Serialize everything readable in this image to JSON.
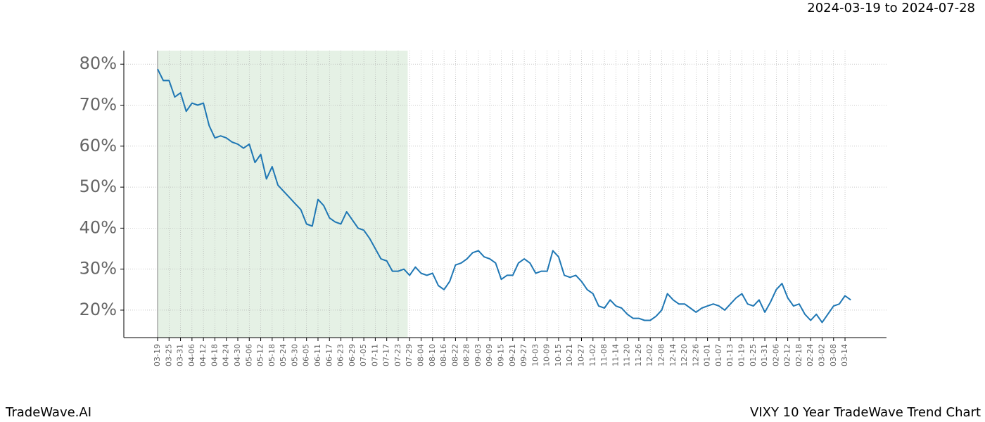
{
  "chart_data": {
    "type": "line",
    "subtitle": "2024-03-19 to 2024-07-28",
    "brand": "TradeWave.AI",
    "title": "VIXY 10 Year TradeWave Trend Chart",
    "highlight": {
      "start": "03-19",
      "end": "07-28",
      "color": "#e5f1e5"
    },
    "grid": true,
    "ylim": [
      13.3,
      83.3
    ],
    "yticks": [
      {
        "value": 20,
        "label": "20%"
      },
      {
        "value": 30,
        "label": "30%"
      },
      {
        "value": 40,
        "label": "40%"
      },
      {
        "value": 50,
        "label": "50%"
      },
      {
        "value": 60,
        "label": "60%"
      },
      {
        "value": 70,
        "label": "70%"
      },
      {
        "value": 80,
        "label": "80%"
      }
    ],
    "xticks": [
      "03-19",
      "03-25",
      "03-31",
      "04-06",
      "04-12",
      "04-18",
      "04-24",
      "04-30",
      "05-06",
      "05-12",
      "05-18",
      "05-24",
      "05-30",
      "06-05",
      "06-11",
      "06-17",
      "06-23",
      "06-29",
      "07-05",
      "07-11",
      "07-17",
      "07-23",
      "07-29",
      "08-04",
      "08-10",
      "08-16",
      "08-22",
      "08-28",
      "09-03",
      "09-09",
      "09-15",
      "09-21",
      "09-27",
      "10-03",
      "10-09",
      "10-15",
      "10-21",
      "10-27",
      "11-02",
      "11-08",
      "11-14",
      "11-20",
      "11-26",
      "12-02",
      "12-08",
      "12-14",
      "12-20",
      "12-26",
      "01-01",
      "01-07",
      "01-13",
      "01-19",
      "01-25",
      "01-31",
      "02-06",
      "02-12",
      "02-18",
      "02-24",
      "03-02",
      "03-08",
      "03-14"
    ],
    "x": [
      "03-19",
      "03-22",
      "03-25",
      "03-28",
      "03-31",
      "04-03",
      "04-06",
      "04-09",
      "04-12",
      "04-15",
      "04-18",
      "04-21",
      "04-24",
      "04-27",
      "04-30",
      "05-03",
      "05-06",
      "05-09",
      "05-12",
      "05-15",
      "05-18",
      "05-21",
      "05-24",
      "05-27",
      "05-30",
      "06-02",
      "06-05",
      "06-08",
      "06-11",
      "06-14",
      "06-17",
      "06-20",
      "06-23",
      "06-26",
      "06-29",
      "07-02",
      "07-05",
      "07-08",
      "07-11",
      "07-14",
      "07-17",
      "07-20",
      "07-23",
      "07-26",
      "07-29",
      "08-01",
      "08-04",
      "08-07",
      "08-10",
      "08-13",
      "08-16",
      "08-19",
      "08-22",
      "08-25",
      "08-28",
      "08-31",
      "09-03",
      "09-06",
      "09-09",
      "09-12",
      "09-15",
      "09-18",
      "09-21",
      "09-24",
      "09-27",
      "09-30",
      "10-03",
      "10-06",
      "10-09",
      "10-12",
      "10-15",
      "10-18",
      "10-21",
      "10-24",
      "10-27",
      "10-30",
      "11-02",
      "11-05",
      "11-08",
      "11-11",
      "11-14",
      "11-17",
      "11-20",
      "11-23",
      "11-26",
      "11-29",
      "12-02",
      "12-05",
      "12-08",
      "12-11",
      "12-14",
      "12-17",
      "12-20",
      "12-23",
      "12-26",
      "12-29",
      "01-01",
      "01-04",
      "01-07",
      "01-10",
      "01-13",
      "01-16",
      "01-19",
      "01-22",
      "01-25",
      "01-28",
      "01-31",
      "02-03",
      "02-06",
      "02-09",
      "02-12",
      "02-15",
      "02-18",
      "02-21",
      "02-24",
      "02-27",
      "03-02",
      "03-05",
      "03-08",
      "03-11",
      "03-14",
      "03-17"
    ],
    "series": [
      {
        "color": "#1f77b4",
        "values": [
          78.8,
          76,
          76,
          72,
          73,
          68.5,
          70.5,
          70,
          70.5,
          65,
          62,
          62.5,
          62,
          61,
          60.5,
          59.5,
          60.5,
          56,
          58,
          52,
          55,
          50.5,
          49,
          47.5,
          46,
          44.5,
          41,
          40.5,
          47,
          45.5,
          42.5,
          41.5,
          41,
          44,
          42,
          40,
          39.5,
          37.5,
          35,
          32.5,
          32,
          29.5,
          29.5,
          30,
          28.5,
          30.5,
          29,
          28.5,
          29,
          26,
          25,
          27,
          31,
          31.5,
          32.5,
          34,
          34.5,
          33,
          32.5,
          31.5,
          27.5,
          28.5,
          28.5,
          31.5,
          32.5,
          31.5,
          29,
          29.5,
          29.5,
          34.5,
          33,
          28.5,
          28,
          28.5,
          27,
          25,
          24,
          21,
          20.5,
          22.5,
          21,
          20.5,
          19,
          18,
          18,
          17.5,
          17.5,
          18.5,
          20,
          24,
          22.5,
          21.5,
          21.5,
          20.5,
          19.5,
          20.5,
          21,
          21.5,
          21,
          20,
          21.5,
          23,
          24,
          21.5,
          21,
          22.5,
          19.5,
          22,
          25,
          26.5,
          23,
          21,
          21.5,
          19,
          17.5,
          19,
          17,
          19,
          21,
          21.5,
          23.5,
          22.5
        ]
      }
    ]
  }
}
